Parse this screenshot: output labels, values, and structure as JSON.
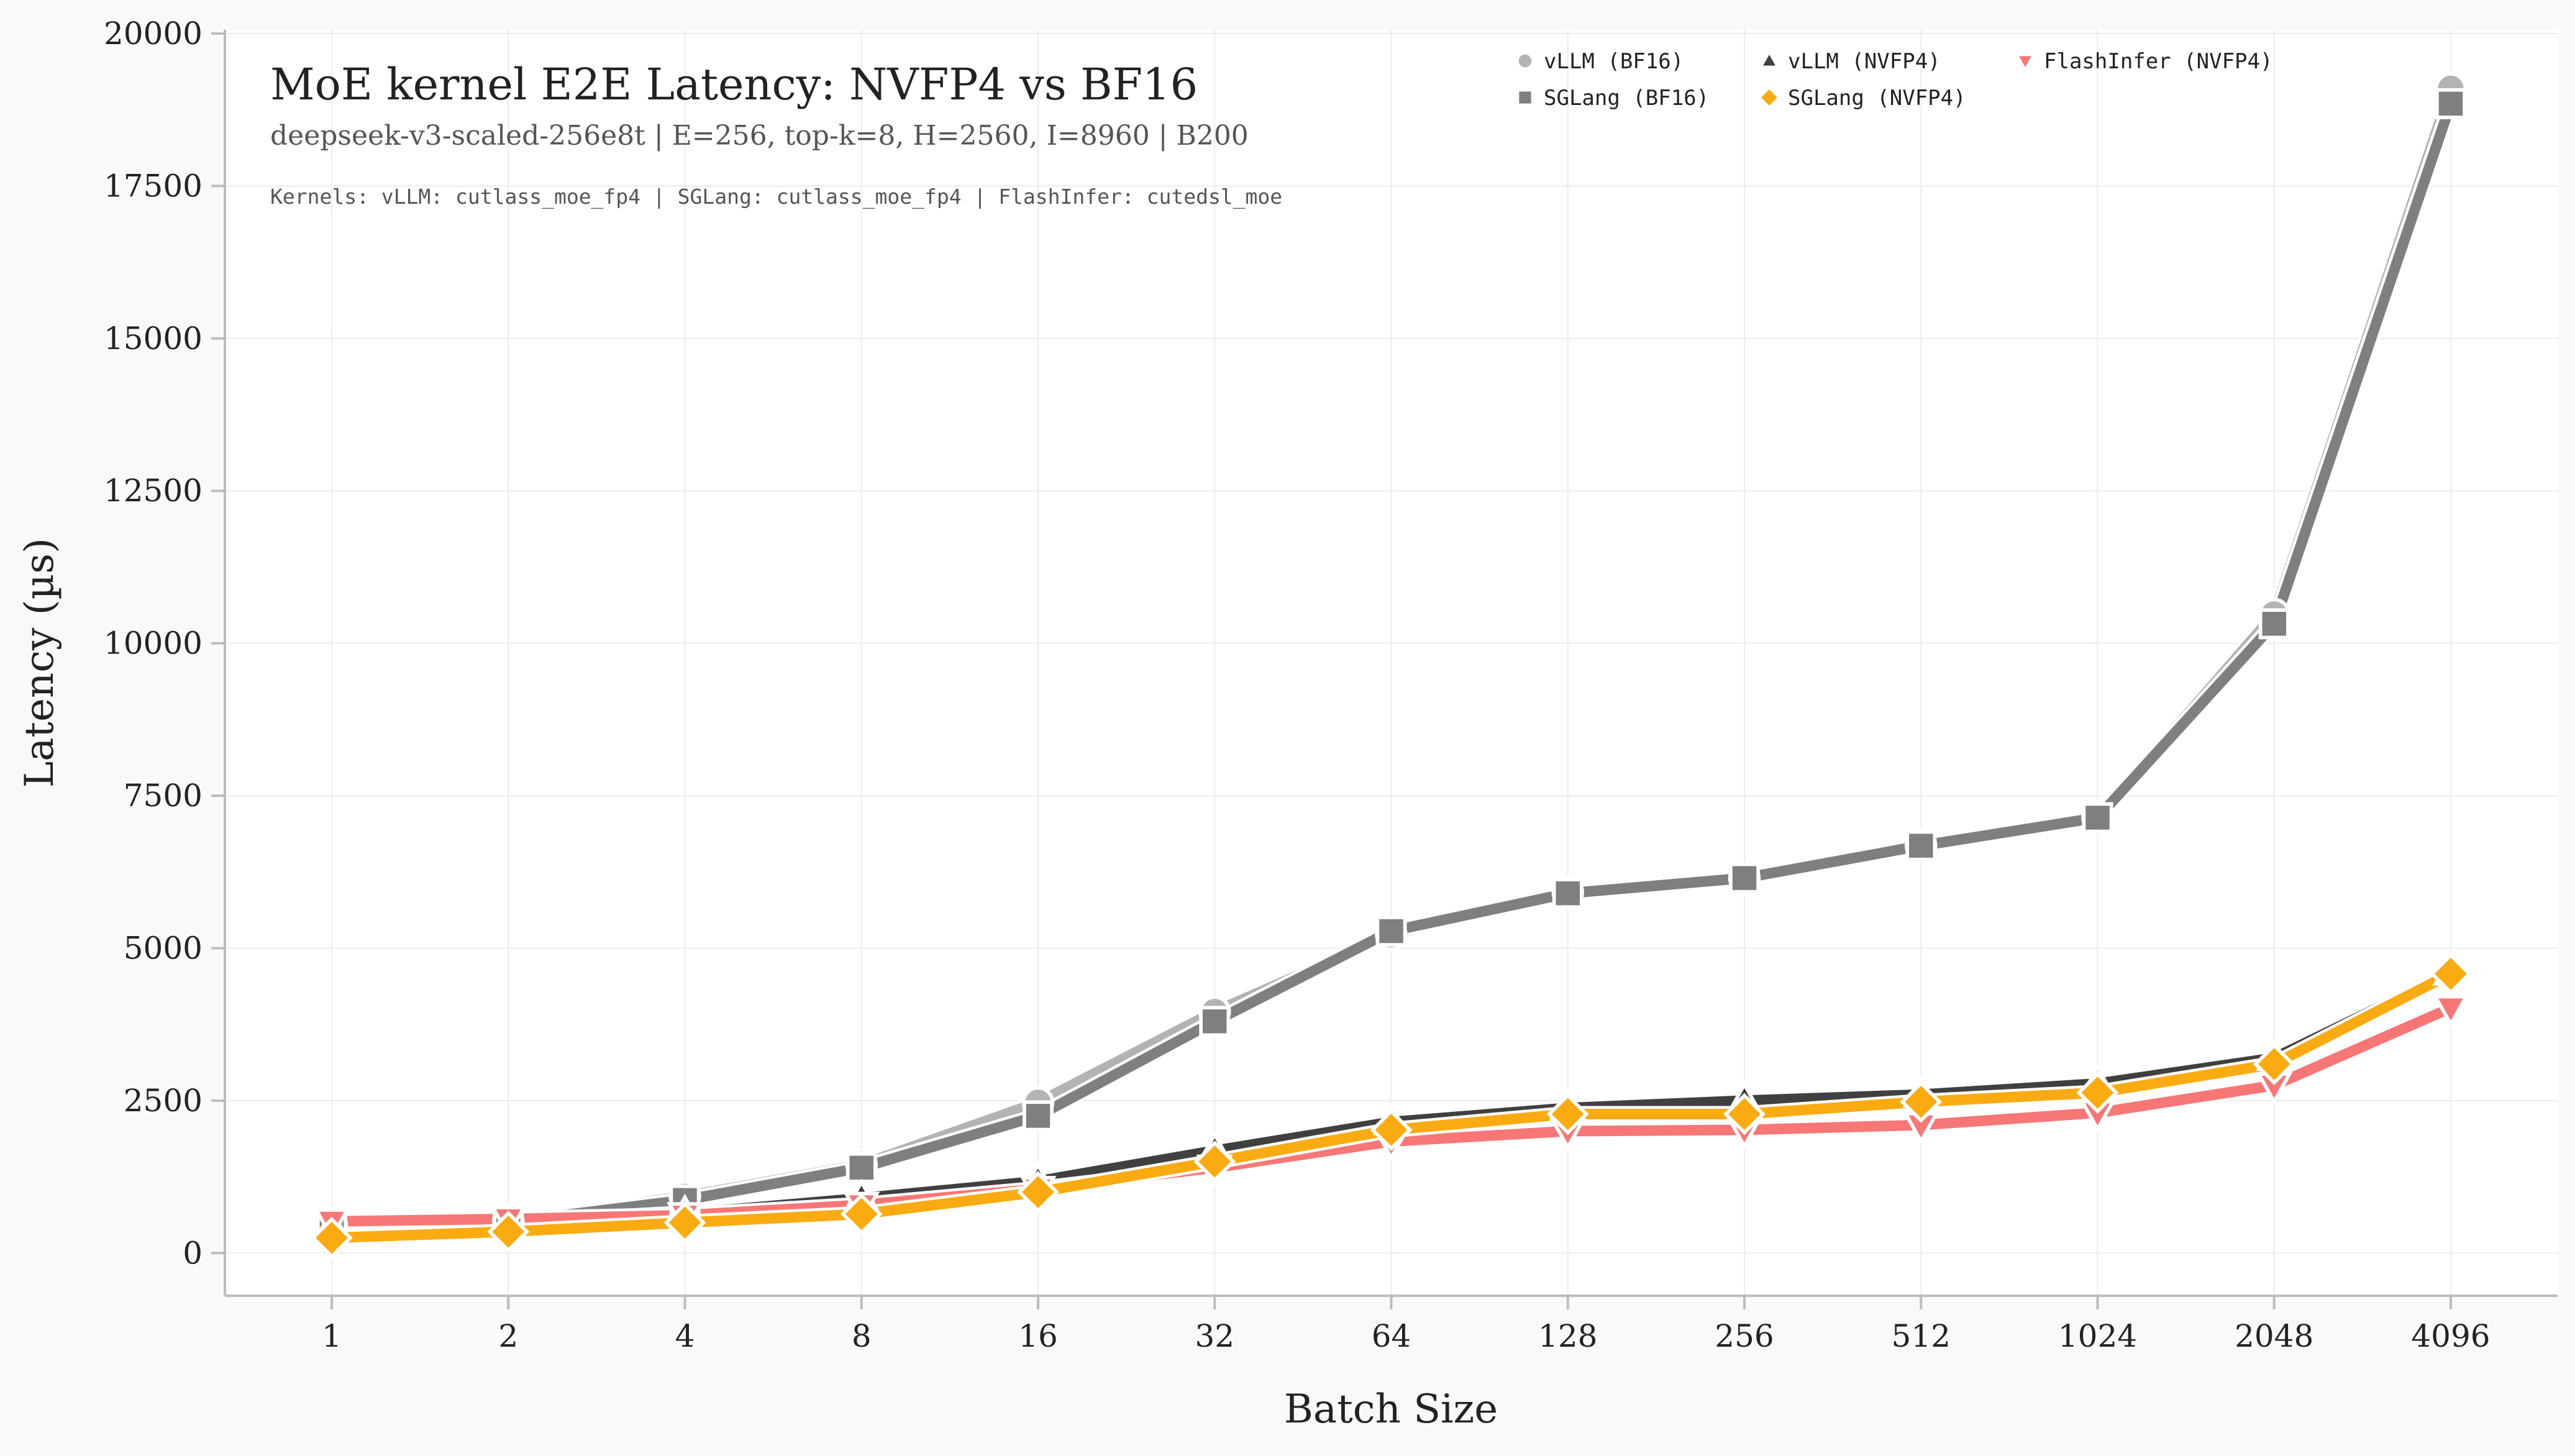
{
  "chart_data": {
    "type": "line",
    "title": "MoE kernel E2E Latency: NVFP4 vs BF16",
    "subtitle": "deepseek-v3-scaled-256e8t | E=256, top-k=8, H=2560, I=8960 | B200",
    "annotation": "Kernels: vLLM: cutlass_moe_fp4 | SGLang: cutlass_moe_fp4 | FlashInfer: cutedsl_moe",
    "xlabel": "Batch Size",
    "ylabel": "Latency (µs)",
    "x_scale": "categorical",
    "categories": [
      "1",
      "2",
      "4",
      "8",
      "16",
      "32",
      "64",
      "128",
      "256",
      "512",
      "1024",
      "2048",
      "4096"
    ],
    "ylim": [
      -700,
      20000
    ],
    "yticks": [
      "0",
      "2500",
      "5000",
      "7500",
      "10000",
      "12500",
      "15000",
      "17500",
      "20000"
    ],
    "grid": true,
    "legend_position": "top-right",
    "series": [
      {
        "name": "vLLM (BF16)",
        "color": "#b3b3b3",
        "marker": "circle",
        "values": [
          470,
          520,
          930,
          1450,
          2470,
          3960,
          5220,
          5920,
          6150,
          6680,
          7140,
          10480,
          19100
        ]
      },
      {
        "name": "SGLang (BF16)",
        "color": "#7f7f7f",
        "marker": "square",
        "values": [
          460,
          510,
          870,
          1400,
          2250,
          3800,
          5280,
          5900,
          6150,
          6680,
          7140,
          10320,
          18850
        ]
      },
      {
        "name": "vLLM (NVFP4)",
        "color": "#404040",
        "marker": "triangle-up",
        "values": [
          430,
          490,
          650,
          900,
          1180,
          1680,
          2150,
          2380,
          2500,
          2600,
          2780,
          3200,
          4600
        ]
      },
      {
        "name": "SGLang (NVFP4)",
        "color": "#fbab12",
        "marker": "diamond",
        "values": [
          250,
          350,
          500,
          640,
          1000,
          1500,
          2020,
          2280,
          2280,
          2480,
          2630,
          3100,
          4580
        ]
      },
      {
        "name": "FlashInfer (NVFP4)",
        "color": "#f77777",
        "marker": "triangle-down",
        "values": [
          520,
          560,
          620,
          790,
          1050,
          1400,
          1830,
          2000,
          2020,
          2100,
          2300,
          2750,
          4020
        ]
      }
    ]
  }
}
